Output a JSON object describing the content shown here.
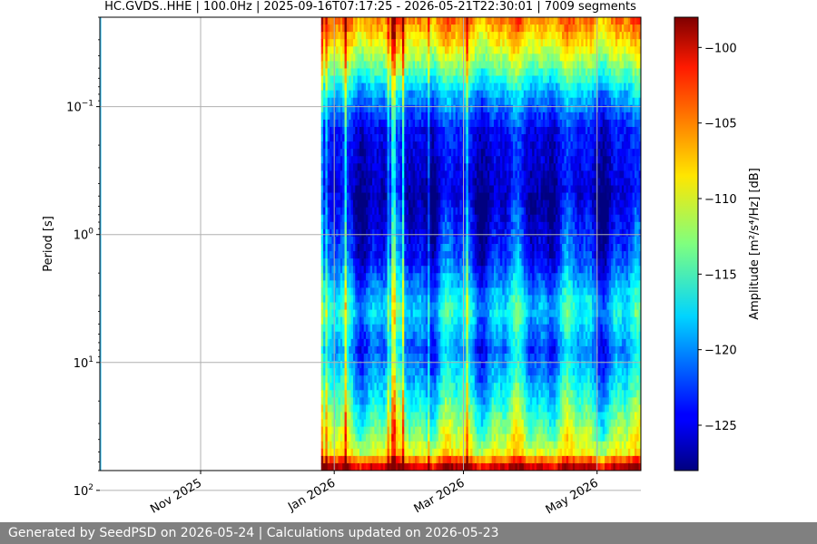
{
  "colors": {
    "footer_bg": "#808080",
    "footer_text": "#ffffff",
    "grid": "#b0b0b0",
    "colormap": "jet"
  },
  "footer": {
    "text": "Generated by SeedPSD on 2026-05-24 | Calculations updated on 2026-05-23"
  },
  "chart_data": {
    "type": "heatmap",
    "title": "HC.GVDS..HHE | 100.0Hz | 2025-09-16T07:17:25 - 2026-05-21T22:30:01 | 7009 segments",
    "ylabel": "Period [s]",
    "ylabel_latex_parts": {
      "prefix": "Amplitude [",
      "unit": "m2/s4/Hz",
      "suffix": "] [dB]"
    },
    "colorbar_label": "Amplitude [m²/s⁴/Hz] [dB]",
    "y_scale": "log",
    "y_inverted": true,
    "ylim": [
      0.02,
      70
    ],
    "y_ticks": [
      {
        "base": "10",
        "exp": "−1",
        "value": 0.1
      },
      {
        "base": "10",
        "exp": "0",
        "value": 1
      },
      {
        "base": "10",
        "exp": "1",
        "value": 10
      },
      {
        "base": "10",
        "exp": "2",
        "value": 100
      }
    ],
    "xlim": [
      "2025-09-16",
      "2026-05-21"
    ],
    "x_ticks": [
      {
        "label": "Nov 2025",
        "date": "2025-11-01"
      },
      {
        "label": "Jan 2026",
        "date": "2026-01-01"
      },
      {
        "label": "Mar 2026",
        "date": "2026-03-01"
      },
      {
        "label": "May 2026",
        "date": "2026-05-01"
      }
    ],
    "data_start": "2025-12-26",
    "data_end": "2026-05-21",
    "grid": true,
    "colorbar": {
      "min": -128,
      "max": -98,
      "ticks": [
        -100,
        -105,
        -110,
        -115,
        -120,
        -125
      ],
      "tick_labels": [
        "−100",
        "−105",
        "−110",
        "−115",
        "−120",
        "−125"
      ]
    },
    "amplitude_profile_db": [
      {
        "period_s": 0.02,
        "db": -105
      },
      {
        "period_s": 0.04,
        "db": -111
      },
      {
        "period_s": 0.08,
        "db": -119
      },
      {
        "period_s": 0.15,
        "db": -124
      },
      {
        "period_s": 0.5,
        "db": -126
      },
      {
        "period_s": 1.5,
        "db": -123
      },
      {
        "period_s": 4,
        "db": -117
      },
      {
        "period_s": 8,
        "db": -121
      },
      {
        "period_s": 20,
        "db": -116
      },
      {
        "period_s": 50,
        "db": -110
      },
      {
        "period_s": 70,
        "db": -98
      }
    ]
  }
}
